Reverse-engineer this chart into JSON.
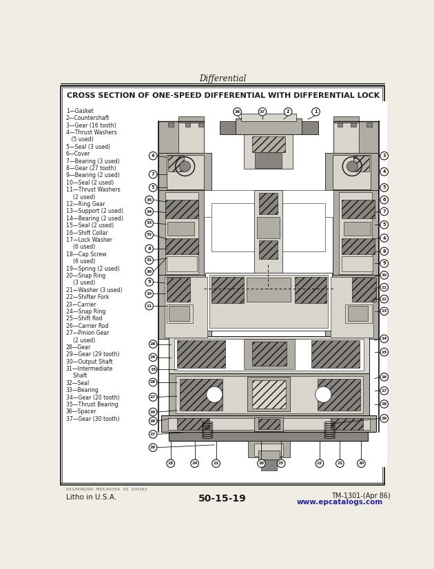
{
  "page_title": "Differential",
  "diagram_title": "CROSS SECTION OF ONE-SPEED DIFFERENTIAL WITH DIFFERENTIAL LOCK",
  "parts_text": [
    "1—Gasket",
    "2—Countershaft",
    "3—Gear (16 tooth)",
    "4—Thrust Washers",
    "   (5 used)",
    "5—Seal (3 used)",
    "6—Cover",
    "7—Bearing (3 used)",
    "8—Gear (27 tooth)",
    "9—Bearing (2 used)",
    "10—Seal (2 used)",
    "11—Thrust Washers",
    "    (2 used)",
    "12—Ring Gear",
    "13—Support (2 used)",
    "14—Bearing (2 used)",
    "15—Seal (2 used)",
    "16—Shift Collar",
    "17—Lock Washer",
    "    (6 used)",
    "18—Cap Screw",
    "    (6 used)",
    "19—Spring (2 used)",
    "20—Snap Ring",
    "    (3 used)",
    "21—Washer (3 used)",
    "22—Shifter Fork",
    "23—Carrier",
    "24—Snap Ring",
    "25—Shift Rod",
    "26—Carrier Rod",
    "27—Pinion Gear",
    "    (2 used)",
    "28—Gear",
    "29—Gear (29 tooth)",
    "30—Output Shaft",
    "31—Intermediate",
    "    Shaft",
    "32—Seal",
    "33—Bearing",
    "34—Gear (20 tooth)",
    "35—Thrust Bearing",
    "36—Spacer",
    "37—Gear (30 tooth)"
  ],
  "footer_left": "Litho in U.S.A.",
  "footer_center": "50-15-19",
  "footer_right": "TM-1301-(Apr 86)",
  "footer_url": "www.epcatalogs.com",
  "footer_small": "543/M36204  M65;90354  30  100363",
  "page_bg": "#f0ede5",
  "white": "#ffffff",
  "black": "#111111",
  "gray_light": "#d8d5cc",
  "gray_med": "#b0ada4",
  "gray_dark": "#888580",
  "border_color": "#444444",
  "hatch_color": "#777770",
  "text_color": "#1a1a1a",
  "url_color": "#222299"
}
